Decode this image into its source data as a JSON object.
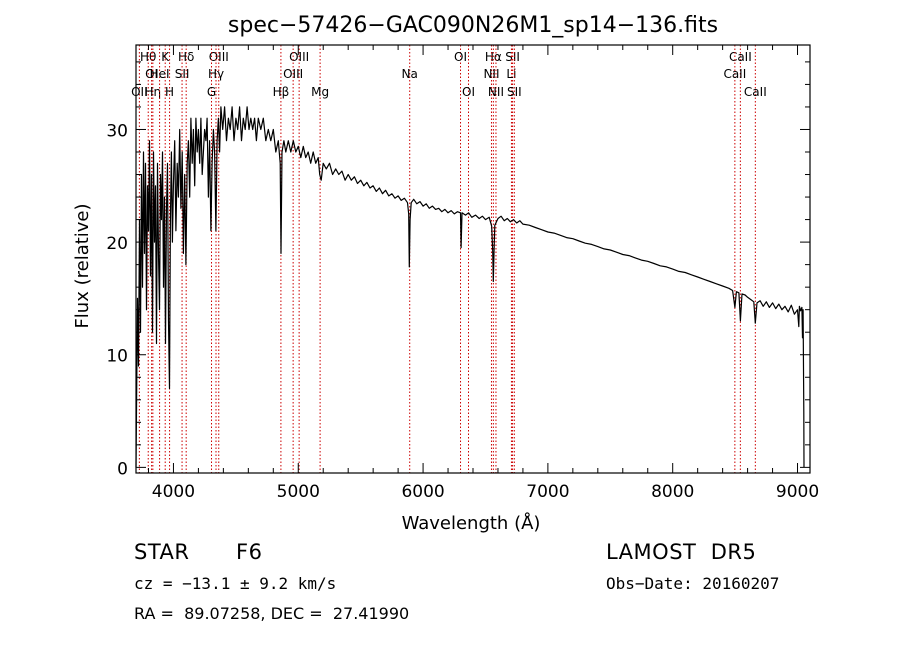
{
  "chart_data": {
    "type": "line",
    "title": "spec−57426−GAC090N26M1_sp14−136.fits",
    "xlabel": "Wavelength (Å)",
    "ylabel": "Flux (relative)",
    "xlim": [
      3700,
      9100
    ],
    "ylim": [
      -0.5,
      37.5
    ],
    "xticks": [
      4000,
      5000,
      6000,
      7000,
      8000,
      9000
    ],
    "yticks": [
      0,
      10,
      20,
      30
    ],
    "grid": false,
    "series": [
      {
        "points": [
          [
            3700,
            0.0
          ],
          [
            3705,
            6
          ],
          [
            3712,
            15
          ],
          [
            3720,
            9
          ],
          [
            3728,
            22
          ],
          [
            3736,
            12
          ],
          [
            3744,
            26
          ],
          [
            3752,
            16
          ],
          [
            3760,
            28
          ],
          [
            3768,
            19
          ],
          [
            3776,
            27
          ],
          [
            3784,
            14
          ],
          [
            3792,
            25
          ],
          [
            3800,
            21
          ],
          [
            3808,
            29
          ],
          [
            3816,
            17
          ],
          [
            3824,
            26
          ],
          [
            3832,
            12
          ],
          [
            3840,
            28
          ],
          [
            3848,
            20
          ],
          [
            3856,
            25
          ],
          [
            3864,
            11
          ],
          [
            3872,
            27
          ],
          [
            3880,
            19
          ],
          [
            3888,
            14
          ],
          [
            3896,
            26
          ],
          [
            3904,
            22
          ],
          [
            3912,
            28
          ],
          [
            3920,
            16
          ],
          [
            3928,
            24
          ],
          [
            3936,
            11
          ],
          [
            3944,
            23
          ],
          [
            3952,
            27
          ],
          [
            3960,
            13
          ],
          [
            3968,
            7
          ],
          [
            3976,
            22
          ],
          [
            3984,
            28
          ],
          [
            3992,
            20
          ],
          [
            4000,
            25
          ],
          [
            4010,
            29
          ],
          [
            4020,
            21
          ],
          [
            4030,
            27
          ],
          [
            4040,
            24
          ],
          [
            4050,
            30
          ],
          [
            4060,
            23
          ],
          [
            4070,
            28
          ],
          [
            4080,
            19
          ],
          [
            4090,
            26
          ],
          [
            4100,
            18
          ],
          [
            4110,
            27
          ],
          [
            4120,
            29
          ],
          [
            4130,
            24
          ],
          [
            4140,
            31
          ],
          [
            4150,
            27
          ],
          [
            4160,
            30
          ],
          [
            4170,
            25
          ],
          [
            4180,
            31
          ],
          [
            4190,
            28
          ],
          [
            4200,
            30
          ],
          [
            4210,
            27
          ],
          [
            4220,
            31
          ],
          [
            4230,
            26
          ],
          [
            4240,
            28
          ],
          [
            4250,
            30
          ],
          [
            4260,
            29
          ],
          [
            4270,
            31
          ],
          [
            4280,
            24
          ],
          [
            4290,
            29
          ],
          [
            4300,
            21
          ],
          [
            4310,
            27
          ],
          [
            4320,
            30
          ],
          [
            4330,
            28
          ],
          [
            4340,
            21
          ],
          [
            4350,
            29
          ],
          [
            4360,
            31
          ],
          [
            4370,
            28
          ],
          [
            4380,
            32
          ],
          [
            4395,
            30
          ],
          [
            4410,
            32
          ],
          [
            4425,
            29
          ],
          [
            4440,
            31
          ],
          [
            4455,
            30
          ],
          [
            4470,
            32
          ],
          [
            4485,
            29
          ],
          [
            4500,
            31
          ],
          [
            4515,
            30
          ],
          [
            4530,
            32
          ],
          [
            4545,
            29
          ],
          [
            4560,
            31
          ],
          [
            4575,
            30
          ],
          [
            4590,
            32
          ],
          [
            4605,
            30
          ],
          [
            4620,
            31
          ],
          [
            4635,
            30
          ],
          [
            4650,
            31
          ],
          [
            4665,
            29
          ],
          [
            4680,
            31
          ],
          [
            4700,
            30
          ],
          [
            4720,
            31
          ],
          [
            4740,
            29
          ],
          [
            4760,
            30
          ],
          [
            4780,
            29
          ],
          [
            4800,
            30
          ],
          [
            4820,
            28
          ],
          [
            4840,
            29
          ],
          [
            4855,
            27
          ],
          [
            4862,
            19
          ],
          [
            4870,
            28
          ],
          [
            4885,
            29
          ],
          [
            4900,
            28
          ],
          [
            4920,
            29
          ],
          [
            4940,
            28
          ],
          [
            4960,
            29
          ],
          [
            4980,
            28
          ],
          [
            5000,
            28.5
          ],
          [
            5020,
            27.5
          ],
          [
            5040,
            28.5
          ],
          [
            5060,
            27.5
          ],
          [
            5080,
            28
          ],
          [
            5100,
            27
          ],
          [
            5120,
            28
          ],
          [
            5140,
            27
          ],
          [
            5160,
            27.5
          ],
          [
            5172,
            26
          ],
          [
            5184,
            25.5
          ],
          [
            5200,
            27
          ],
          [
            5225,
            26.5
          ],
          [
            5250,
            27
          ],
          [
            5275,
            26
          ],
          [
            5300,
            26.5
          ],
          [
            5325,
            26
          ],
          [
            5350,
            26.3
          ],
          [
            5375,
            25.5
          ],
          [
            5400,
            26
          ],
          [
            5425,
            25.5
          ],
          [
            5450,
            25.8
          ],
          [
            5475,
            25.2
          ],
          [
            5500,
            25.5
          ],
          [
            5525,
            25
          ],
          [
            5550,
            25.3
          ],
          [
            5575,
            24.8
          ],
          [
            5600,
            25
          ],
          [
            5625,
            24.5
          ],
          [
            5650,
            24.8
          ],
          [
            5675,
            24.3
          ],
          [
            5700,
            24.6
          ],
          [
            5725,
            24.1
          ],
          [
            5750,
            24.3
          ],
          [
            5775,
            23.9
          ],
          [
            5800,
            24.1
          ],
          [
            5825,
            23.7
          ],
          [
            5850,
            23.9
          ],
          [
            5875,
            23.5
          ],
          [
            5885,
            22.5
          ],
          [
            5890,
            17.8
          ],
          [
            5896,
            22
          ],
          [
            5905,
            23.5
          ],
          [
            5925,
            23.8
          ],
          [
            5950,
            23.4
          ],
          [
            5975,
            23.6
          ],
          [
            6000,
            23.2
          ],
          [
            6025,
            23.4
          ],
          [
            6050,
            23.0
          ],
          [
            6075,
            23.2
          ],
          [
            6100,
            22.9
          ],
          [
            6125,
            23.0
          ],
          [
            6150,
            22.7
          ],
          [
            6175,
            22.9
          ],
          [
            6200,
            22.6
          ],
          [
            6225,
            22.8
          ],
          [
            6250,
            22.5
          ],
          [
            6275,
            22.7
          ],
          [
            6300,
            22.6
          ],
          [
            6305,
            19.5
          ],
          [
            6312,
            22.6
          ],
          [
            6340,
            22.4
          ],
          [
            6365,
            22.6
          ],
          [
            6390,
            22.2
          ],
          [
            6420,
            22.4
          ],
          [
            6450,
            22.1
          ],
          [
            6475,
            22.3
          ],
          [
            6500,
            22.0
          ],
          [
            6530,
            22.2
          ],
          [
            6550,
            21.4
          ],
          [
            6558,
            19.2
          ],
          [
            6563,
            16.5
          ],
          [
            6568,
            19.0
          ],
          [
            6575,
            21.5
          ],
          [
            6600,
            22.1
          ],
          [
            6625,
            22.3
          ],
          [
            6650,
            21.9
          ],
          [
            6675,
            22.1
          ],
          [
            6700,
            21.8
          ],
          [
            6725,
            22.0
          ],
          [
            6750,
            21.7
          ],
          [
            6775,
            21.9
          ],
          [
            6800,
            21.6
          ],
          [
            6850,
            21.5
          ],
          [
            6900,
            21.3
          ],
          [
            6950,
            21.1
          ],
          [
            7000,
            20.9
          ],
          [
            7050,
            20.8
          ],
          [
            7100,
            20.6
          ],
          [
            7150,
            20.4
          ],
          [
            7200,
            20.3
          ],
          [
            7250,
            20.1
          ],
          [
            7300,
            19.9
          ],
          [
            7350,
            19.8
          ],
          [
            7400,
            19.6
          ],
          [
            7450,
            19.4
          ],
          [
            7500,
            19.3
          ],
          [
            7550,
            19.1
          ],
          [
            7600,
            18.9
          ],
          [
            7650,
            18.8
          ],
          [
            7700,
            18.6
          ],
          [
            7750,
            18.4
          ],
          [
            7800,
            18.3
          ],
          [
            7850,
            18.1
          ],
          [
            7900,
            17.9
          ],
          [
            7950,
            17.8
          ],
          [
            8000,
            17.6
          ],
          [
            8050,
            17.4
          ],
          [
            8100,
            17.3
          ],
          [
            8150,
            17.1
          ],
          [
            8200,
            16.9
          ],
          [
            8250,
            16.7
          ],
          [
            8300,
            16.5
          ],
          [
            8350,
            16.3
          ],
          [
            8400,
            16.1
          ],
          [
            8450,
            15.9
          ],
          [
            8480,
            15.7
          ],
          [
            8498,
            14.2
          ],
          [
            8510,
            15.6
          ],
          [
            8530,
            15.5
          ],
          [
            8542,
            13.0
          ],
          [
            8555,
            15.4
          ],
          [
            8580,
            15.3
          ],
          [
            8600,
            15.1
          ],
          [
            8625,
            14.9
          ],
          [
            8650,
            14.7
          ],
          [
            8662,
            12.8
          ],
          [
            8675,
            14.6
          ],
          [
            8700,
            14.8
          ],
          [
            8725,
            14.3
          ],
          [
            8750,
            14.7
          ],
          [
            8775,
            14.2
          ],
          [
            8800,
            14.6
          ],
          [
            8825,
            14.1
          ],
          [
            8850,
            14.5
          ],
          [
            8875,
            14.0
          ],
          [
            8900,
            14.3
          ],
          [
            8925,
            13.8
          ],
          [
            8950,
            14.4
          ],
          [
            8975,
            13.6
          ],
          [
            9000,
            14.0
          ],
          [
            9010,
            12.5
          ],
          [
            9015,
            14.3
          ],
          [
            9025,
            13.9
          ],
          [
            9035,
            14.2
          ],
          [
            9040,
            11.5
          ],
          [
            9045,
            14.0
          ],
          [
            9050,
            5.0
          ],
          [
            9052,
            0.0
          ]
        ]
      }
    ],
    "lines": [
      {
        "label": "Hθ",
        "x": 3798,
        "row": 1
      },
      {
        "label": "OI",
        "x": 3825,
        "row": 2
      },
      {
        "label": "OII",
        "x": 3727,
        "row": 3
      },
      {
        "label": "Hη",
        "x": 3835,
        "row": 3
      },
      {
        "label": "K",
        "x": 3934,
        "row": 1
      },
      {
        "label": "HeI",
        "x": 3889,
        "row": 2
      },
      {
        "label": "H",
        "x": 3969,
        "row": 3
      },
      {
        "label": "Hδ",
        "x": 4102,
        "row": 1
      },
      {
        "label": "SII",
        "x": 4069,
        "row": 2
      },
      {
        "label": "OIII",
        "x": 4363,
        "row": 1
      },
      {
        "label": "Hγ",
        "x": 4341,
        "row": 2
      },
      {
        "label": "G",
        "x": 4305,
        "row": 3
      },
      {
        "label": "OIII",
        "x": 5007,
        "row": 1
      },
      {
        "label": "OIII",
        "x": 4959,
        "row": 2
      },
      {
        "label": "Hβ",
        "x": 4861,
        "row": 3
      },
      {
        "label": "Mg",
        "x": 5175,
        "row": 3
      },
      {
        "label": "Na",
        "x": 5893,
        "row": 2
      },
      {
        "label": "OI",
        "x": 6300,
        "row": 1
      },
      {
        "label": "OI",
        "x": 6364,
        "row": 3
      },
      {
        "label": "Hα",
        "x": 6563,
        "row": 1
      },
      {
        "label": "NII",
        "x": 6548,
        "row": 2
      },
      {
        "label": "NII",
        "x": 6584,
        "row": 3
      },
      {
        "label": "SII",
        "x": 6717,
        "row": 1
      },
      {
        "label": "Li",
        "x": 6708,
        "row": 2
      },
      {
        "label": "SII",
        "x": 6731,
        "row": 3
      },
      {
        "label": "CaII",
        "x": 8542,
        "row": 1
      },
      {
        "label": "CaII",
        "x": 8498,
        "row": 2
      },
      {
        "label": "CaII",
        "x": 8662,
        "row": 3
      }
    ]
  },
  "info": {
    "class_label": "STAR",
    "subclass": "F6",
    "survey": "LAMOST  DR5",
    "cz": "cz = −13.1 ± 9.2 km/s",
    "obs_date": "Obs−Date: 20160207",
    "coords": "RA =  89.07258, DEC =  27.41990"
  },
  "colors": {
    "line_marker": "#cc0000",
    "spectrum": "#000000"
  }
}
